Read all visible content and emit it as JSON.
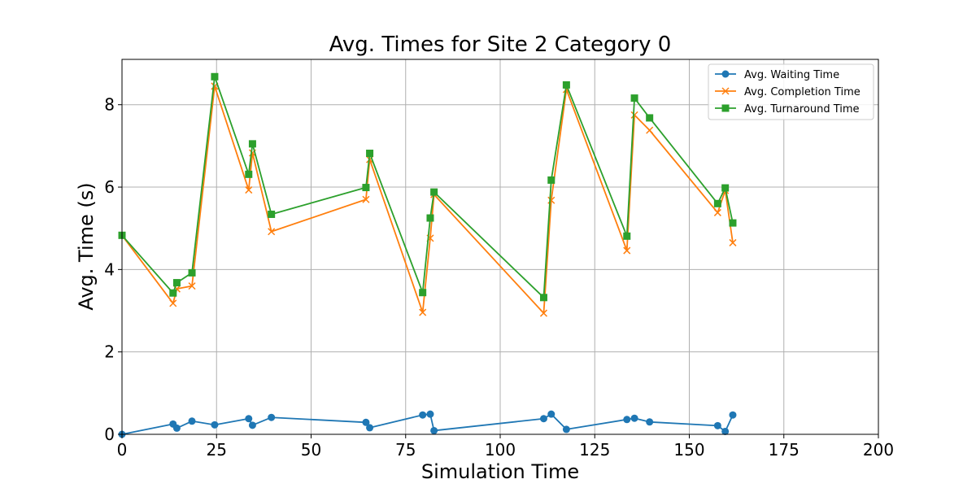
{
  "chart_data": {
    "type": "line",
    "title": "Avg. Times for Site 2 Category 0",
    "xlabel": "Simulation Time",
    "ylabel": "Avg. Time (s)",
    "xlim": [
      0,
      200
    ],
    "ylim": [
      0,
      9.1
    ],
    "xticks": [
      "0",
      "25",
      "50",
      "75",
      "100",
      "125",
      "150",
      "175",
      "200"
    ],
    "yticks": [
      "0",
      "2",
      "4",
      "6",
      "8"
    ],
    "grid": true,
    "legend_position": "top-right",
    "x": [
      0,
      13.5,
      14.5,
      18.5,
      24.5,
      33.5,
      34.5,
      39.5,
      64.5,
      65.5,
      79.5,
      81.5,
      82.5,
      111.5,
      113.5,
      117.5,
      133.5,
      135.5,
      139.5,
      157.5,
      159.5,
      161.5
    ],
    "series": [
      {
        "name": "Avg. Waiting Time",
        "color": "#1f77b4",
        "marker": "circle",
        "values": [
          0.0,
          0.25,
          0.15,
          0.32,
          0.23,
          0.38,
          0.22,
          0.41,
          0.29,
          0.16,
          0.47,
          0.49,
          0.09,
          0.38,
          0.49,
          0.12,
          0.36,
          0.39,
          0.3,
          0.21,
          0.07,
          0.47
        ]
      },
      {
        "name": "Avg. Completion Time",
        "color": "#ff7f0e",
        "marker": "x",
        "values": [
          4.83,
          3.18,
          3.53,
          3.6,
          8.45,
          5.93,
          6.83,
          4.92,
          5.7,
          6.67,
          2.96,
          4.76,
          5.82,
          2.94,
          5.68,
          8.37,
          4.46,
          7.75,
          7.38,
          5.38,
          5.92,
          4.65
        ]
      },
      {
        "name": "Avg. Turnaround Time",
        "color": "#2ca02c",
        "marker": "square",
        "values": [
          4.83,
          3.43,
          3.68,
          3.92,
          8.68,
          6.31,
          7.05,
          5.34,
          5.99,
          6.82,
          3.44,
          5.25,
          5.88,
          3.32,
          6.17,
          8.48,
          4.81,
          8.16,
          7.68,
          5.6,
          5.98,
          5.13
        ]
      }
    ]
  }
}
